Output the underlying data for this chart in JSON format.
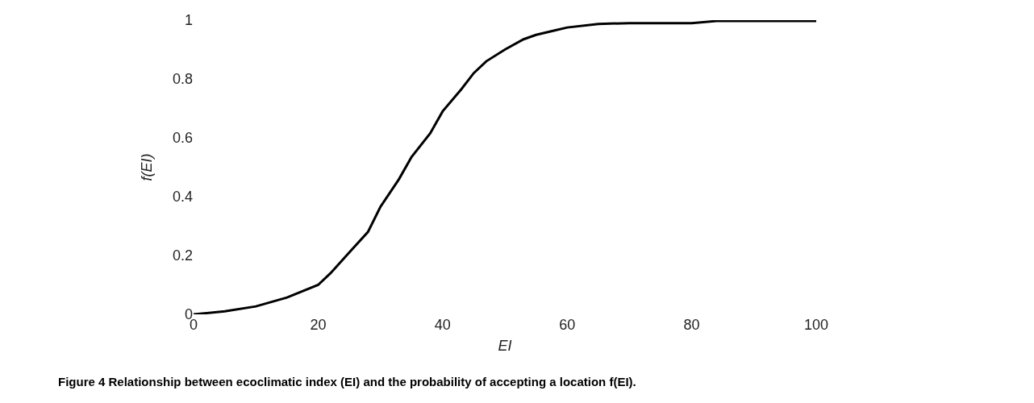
{
  "chart_data": {
    "type": "line",
    "xlabel": "EI",
    "ylabel": "f(EI)",
    "annotations": [
      "Figure 4 Relationship between ecoclimatic index (EI) and the probability of accepting a location f(EI)."
    ],
    "x": [
      0,
      5,
      10,
      15,
      20,
      22,
      25,
      28,
      30,
      33,
      35,
      38,
      40,
      43,
      45,
      47,
      50,
      53,
      55,
      58,
      60,
      65,
      70,
      80,
      84,
      100
    ],
    "series": [
      {
        "color": "#000000",
        "values": [
          0,
          0.01,
          0.027,
          0.057,
          0.1,
          0.14,
          0.21,
          0.28,
          0.365,
          0.46,
          0.535,
          0.615,
          0.69,
          0.765,
          0.82,
          0.86,
          0.9,
          0.935,
          0.95,
          0.965,
          0.975,
          0.987,
          0.99,
          0.99,
          0.997,
          0.997
        ]
      }
    ],
    "xlim": [
      0,
      100
    ],
    "xticks": [
      0,
      20,
      40,
      60,
      80,
      100
    ],
    "ylim": [
      0,
      1
    ],
    "yticks": [
      0,
      0.2,
      0.4,
      0.6,
      0.8,
      1
    ],
    "grid": false,
    "marker": "none",
    "line_style": "solid"
  }
}
